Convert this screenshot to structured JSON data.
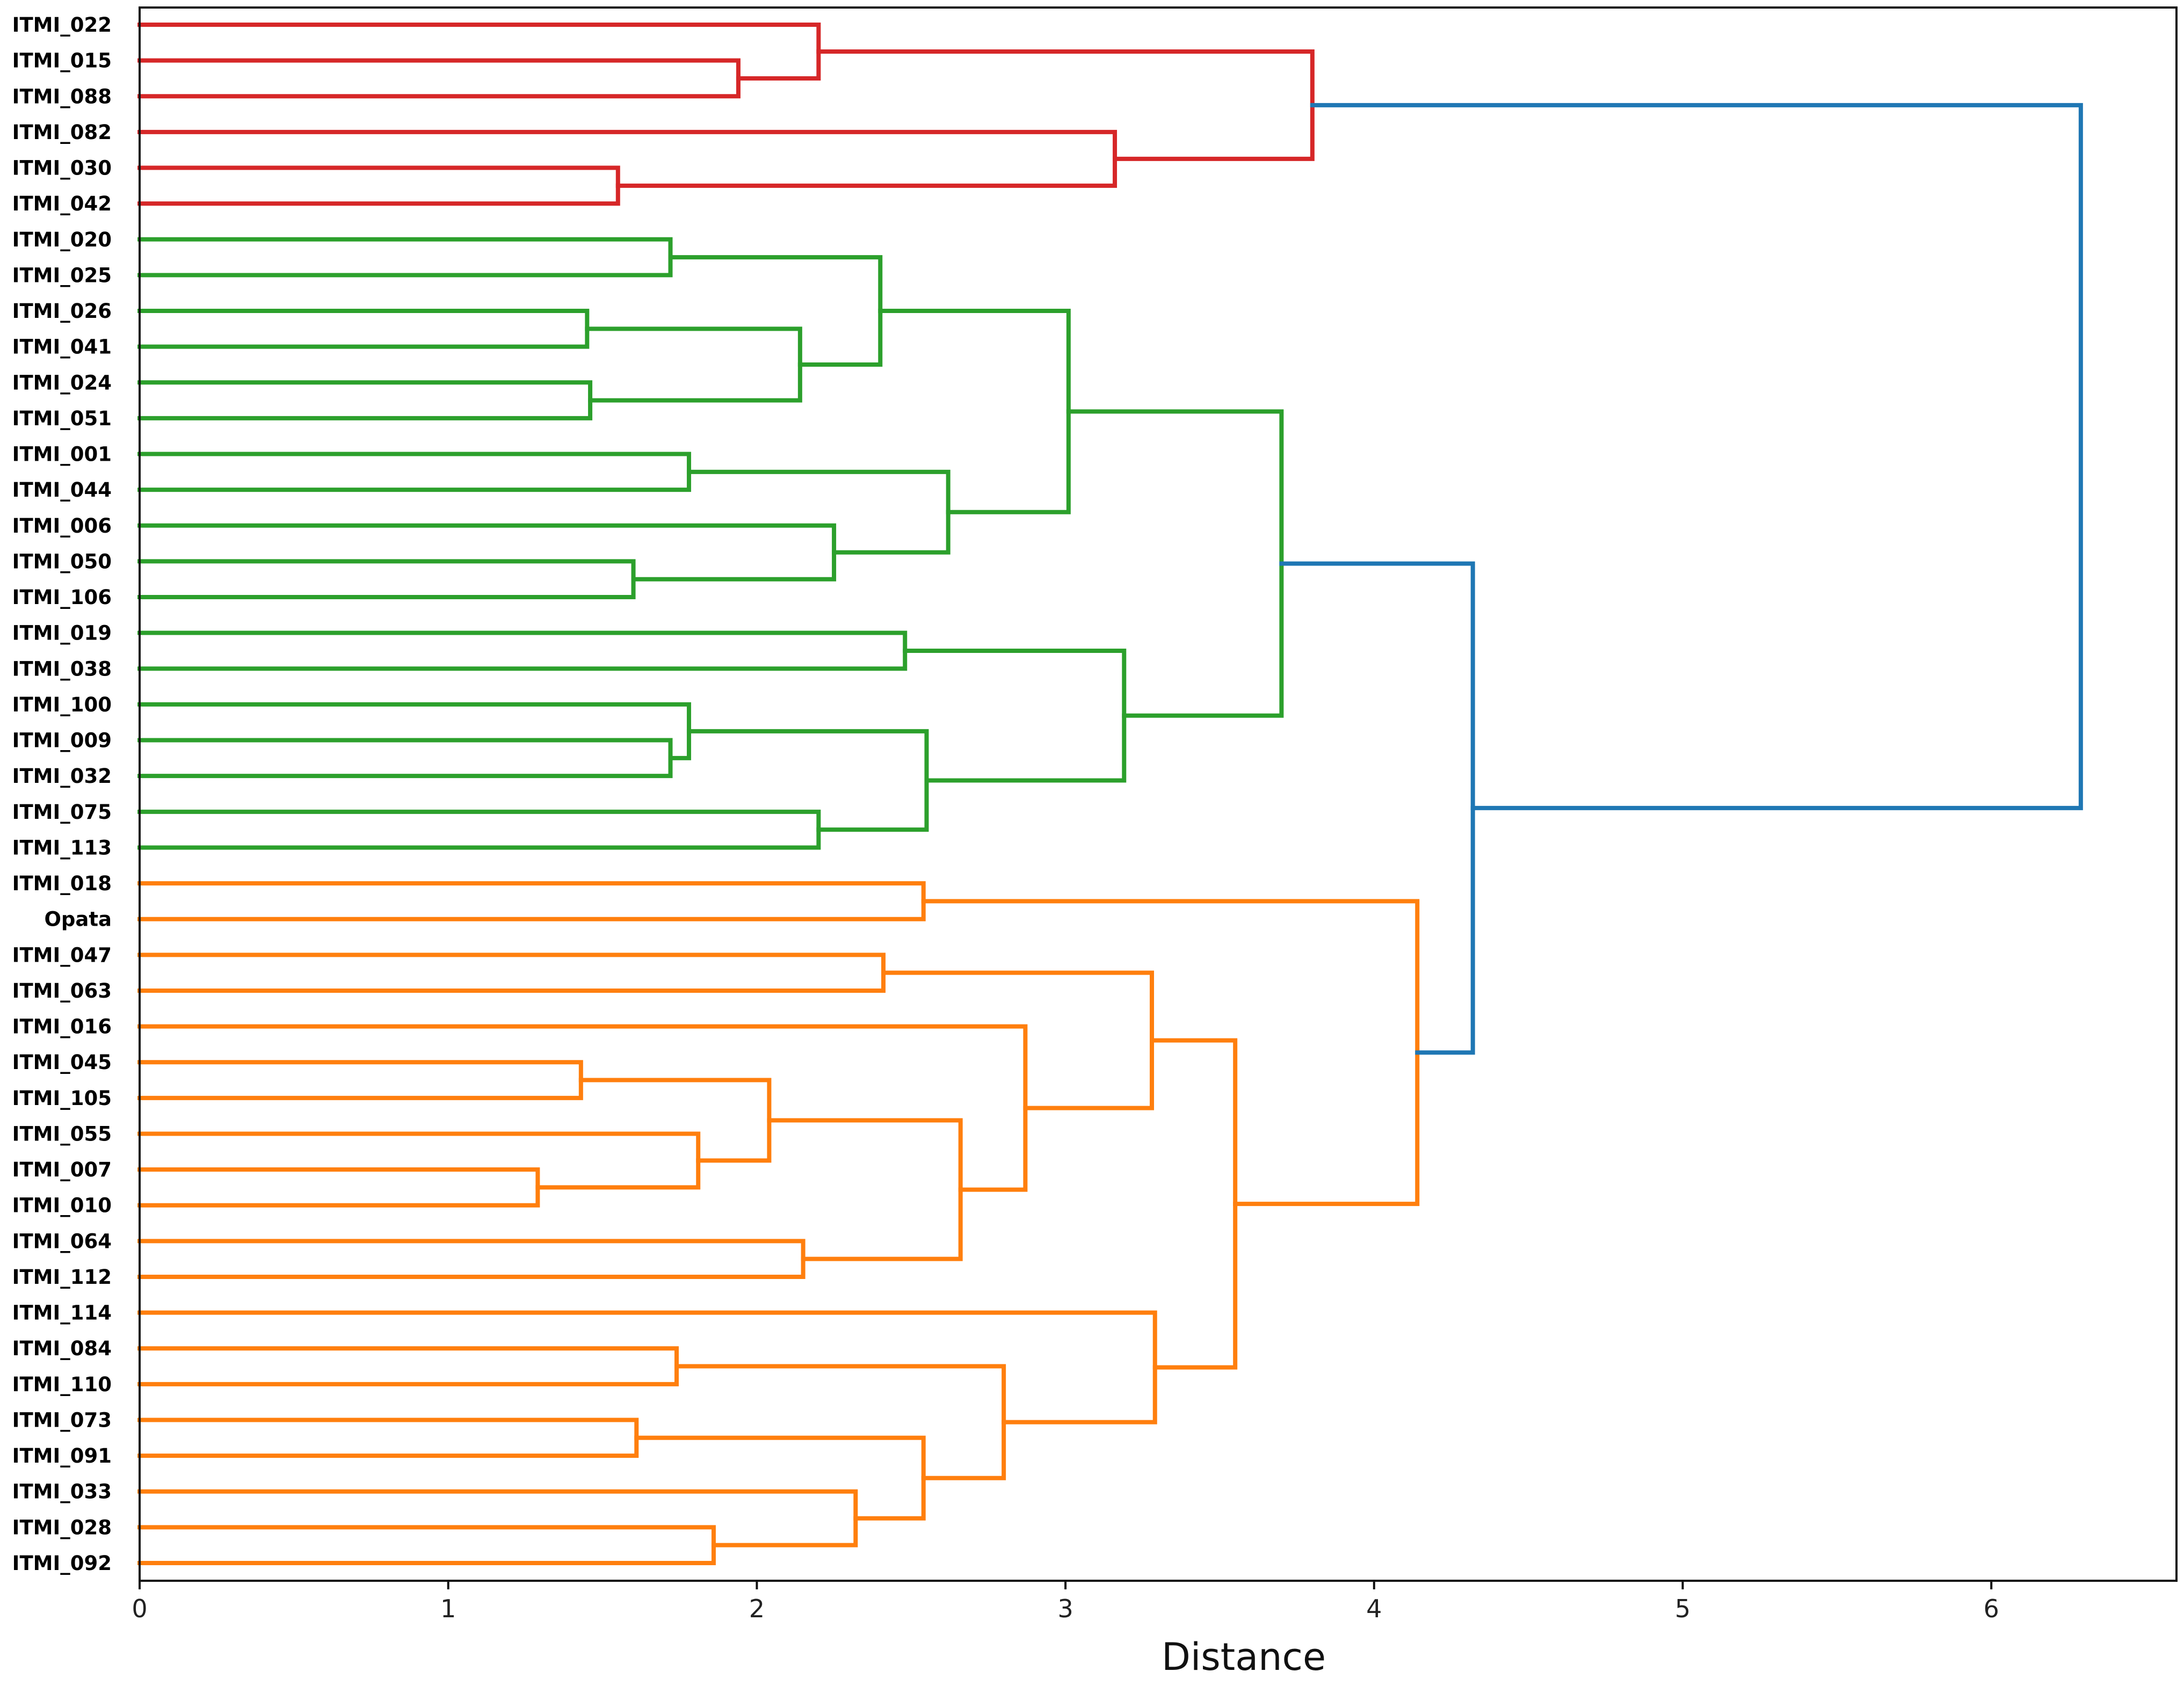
{
  "chart_data": {
    "type": "dendrogram",
    "orientation": "horizontal",
    "xlabel": "Distance",
    "xlim": [
      0,
      6.6
    ],
    "xticks": [
      0,
      1,
      2,
      3,
      4,
      5,
      6
    ],
    "colors": {
      "red": "#d62728",
      "green": "#2ca02c",
      "orange": "#ff7f0e",
      "blue": "#1f77b4"
    },
    "leaves": [
      "ITMI_022",
      "ITMI_015",
      "ITMI_088",
      "ITMI_082",
      "ITMI_030",
      "ITMI_042",
      "ITMI_020",
      "ITMI_025",
      "ITMI_026",
      "ITMI_041",
      "ITMI_024",
      "ITMI_051",
      "ITMI_001",
      "ITMI_044",
      "ITMI_006",
      "ITMI_050",
      "ITMI_106",
      "ITMI_019",
      "ITMI_038",
      "ITMI_100",
      "ITMI_009",
      "ITMI_032",
      "ITMI_075",
      "ITMI_113",
      "ITMI_018",
      "Opata",
      "ITMI_047",
      "ITMI_063",
      "ITMI_016",
      "ITMI_045",
      "ITMI_105",
      "ITMI_055",
      "ITMI_007",
      "ITMI_010",
      "ITMI_064",
      "ITMI_112",
      "ITMI_114",
      "ITMI_084",
      "ITMI_110",
      "ITMI_073",
      "ITMI_091",
      "ITMI_033",
      "ITMI_028",
      "ITMI_092"
    ],
    "merges": [
      {
        "a": "ITMI_015",
        "b": "ITMI_088",
        "height": 1.94,
        "color": "red"
      },
      {
        "a": "ITMI_022",
        "b": 0,
        "height": 2.2,
        "color": "red"
      },
      {
        "a": "ITMI_030",
        "b": "ITMI_042",
        "height": 1.55,
        "color": "red"
      },
      {
        "a": "ITMI_082",
        "b": 2,
        "height": 3.16,
        "color": "red"
      },
      {
        "a": 1,
        "b": 3,
        "height": 3.8,
        "color": "red"
      },
      {
        "a": "ITMI_020",
        "b": "ITMI_025",
        "height": 1.72,
        "color": "green"
      },
      {
        "a": "ITMI_026",
        "b": "ITMI_041",
        "height": 1.45,
        "color": "green"
      },
      {
        "a": "ITMI_024",
        "b": "ITMI_051",
        "height": 1.46,
        "color": "green"
      },
      {
        "a": 6,
        "b": 7,
        "height": 2.14,
        "color": "green"
      },
      {
        "a": 5,
        "b": 8,
        "height": 2.4,
        "color": "green"
      },
      {
        "a": "ITMI_001",
        "b": "ITMI_044",
        "height": 1.78,
        "color": "green"
      },
      {
        "a": "ITMI_050",
        "b": "ITMI_106",
        "height": 1.6,
        "color": "green"
      },
      {
        "a": "ITMI_006",
        "b": 11,
        "height": 2.25,
        "color": "green"
      },
      {
        "a": 10,
        "b": 12,
        "height": 2.62,
        "color": "green"
      },
      {
        "a": 9,
        "b": 13,
        "height": 3.01,
        "color": "green"
      },
      {
        "a": "ITMI_019",
        "b": "ITMI_038",
        "height": 2.48,
        "color": "green"
      },
      {
        "a": "ITMI_009",
        "b": "ITMI_032",
        "height": 1.72,
        "color": "green"
      },
      {
        "a": "ITMI_100",
        "b": 16,
        "height": 1.78,
        "color": "green"
      },
      {
        "a": "ITMI_075",
        "b": "ITMI_113",
        "height": 2.2,
        "color": "green"
      },
      {
        "a": 17,
        "b": 18,
        "height": 2.55,
        "color": "green"
      },
      {
        "a": 15,
        "b": 19,
        "height": 3.19,
        "color": "green"
      },
      {
        "a": 14,
        "b": 20,
        "height": 3.7,
        "color": "green"
      },
      {
        "a": "ITMI_018",
        "b": "Opata",
        "height": 2.54,
        "color": "orange"
      },
      {
        "a": "ITMI_047",
        "b": "ITMI_063",
        "height": 2.41,
        "color": "orange"
      },
      {
        "a": "ITMI_045",
        "b": "ITMI_105",
        "height": 1.43,
        "color": "orange"
      },
      {
        "a": "ITMI_007",
        "b": "ITMI_010",
        "height": 1.29,
        "color": "orange"
      },
      {
        "a": "ITMI_055",
        "b": 25,
        "height": 1.81,
        "color": "orange"
      },
      {
        "a": 24,
        "b": 26,
        "height": 2.04,
        "color": "orange"
      },
      {
        "a": "ITMI_064",
        "b": "ITMI_112",
        "height": 2.15,
        "color": "orange"
      },
      {
        "a": 27,
        "b": 28,
        "height": 2.66,
        "color": "orange"
      },
      {
        "a": "ITMI_016",
        "b": 29,
        "height": 2.87,
        "color": "orange"
      },
      {
        "a": 23,
        "b": 30,
        "height": 3.28,
        "color": "orange"
      },
      {
        "a": "ITMI_084",
        "b": "ITMI_110",
        "height": 1.74,
        "color": "orange"
      },
      {
        "a": "ITMI_073",
        "b": "ITMI_091",
        "height": 1.61,
        "color": "orange"
      },
      {
        "a": "ITMI_028",
        "b": "ITMI_092",
        "height": 1.86,
        "color": "orange"
      },
      {
        "a": "ITMI_033",
        "b": 34,
        "height": 2.32,
        "color": "orange"
      },
      {
        "a": 33,
        "b": 35,
        "height": 2.54,
        "color": "orange"
      },
      {
        "a": 32,
        "b": 36,
        "height": 2.8,
        "color": "orange"
      },
      {
        "a": "ITMI_114",
        "b": 37,
        "height": 3.29,
        "color": "orange"
      },
      {
        "a": 31,
        "b": 38,
        "height": 3.55,
        "color": "orange"
      },
      {
        "a": 22,
        "b": 39,
        "height": 4.14,
        "color": "orange"
      },
      {
        "a": 21,
        "b": 40,
        "height": 4.32,
        "color": "blue"
      },
      {
        "a": 4,
        "b": 41,
        "height": 6.29,
        "color": "blue"
      }
    ]
  }
}
